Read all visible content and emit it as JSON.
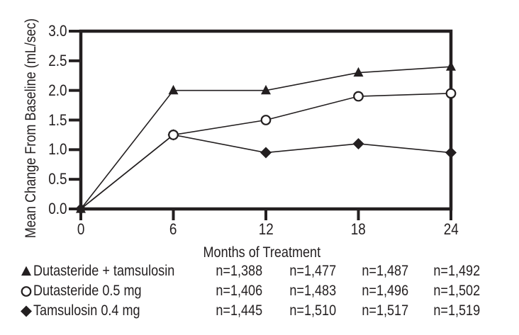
{
  "colors": {
    "ink": "#231f20",
    "background": "#ffffff",
    "open_marker_fill": "#ffffff"
  },
  "chart_data": {
    "type": "line",
    "title": "",
    "xlabel": "Months of Treatment",
    "ylabel": "Mean Change From Baseline (mL/sec)",
    "x": [
      0,
      6,
      12,
      18,
      24
    ],
    "x_tick_labels": [
      "0",
      "6",
      "12",
      "18",
      "24"
    ],
    "y_tick_labels": [
      "3.0",
      "2.5",
      "2.0",
      "1.5",
      "1.0",
      "0.5",
      "0.0"
    ],
    "xlim": [
      0,
      24
    ],
    "ylim": [
      0,
      3.0
    ],
    "grid": false,
    "legend_position": "bottom-left-table",
    "series": [
      {
        "name": "Dutasteride + tamsulosin",
        "marker": "triangle",
        "marker_fill": "solid",
        "values": [
          0.0,
          2.0,
          2.0,
          2.3,
          2.4
        ],
        "n_by_visit": [
          "n=1,388",
          "n=1,477",
          "n=1,487",
          "n=1,492"
        ]
      },
      {
        "name": "Dutasteride 0.5 mg",
        "marker": "circle",
        "marker_fill": "open",
        "values": [
          0.0,
          1.25,
          1.5,
          1.9,
          1.95
        ],
        "n_by_visit": [
          "n=1,406",
          "n=1,483",
          "n=1,496",
          "n=1,502"
        ]
      },
      {
        "name": "Tamsulosin 0.4 mg",
        "marker": "diamond",
        "marker_fill": "solid",
        "values": [
          0.0,
          1.25,
          0.95,
          1.1,
          0.95
        ],
        "n_by_visit": [
          "n=1,445",
          "n=1,510",
          "n=1,517",
          "n=1,519"
        ]
      }
    ]
  }
}
